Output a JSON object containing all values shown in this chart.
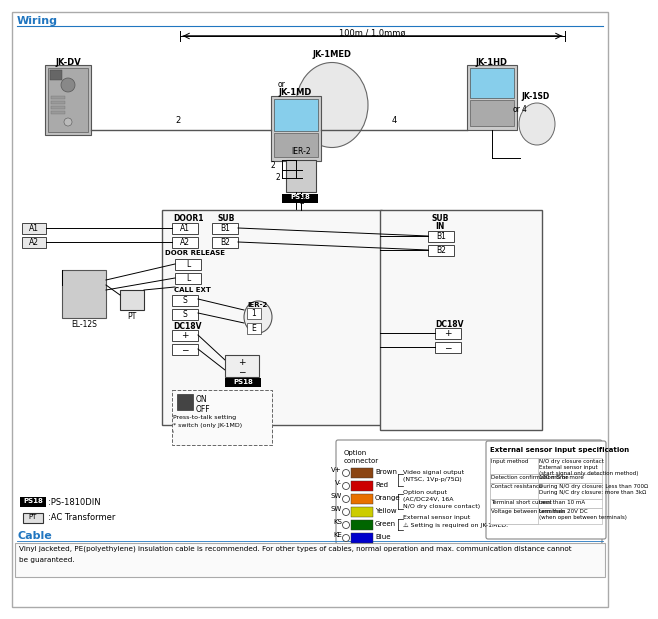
{
  "title": "Wiring",
  "title_color": "#2176C0",
  "cable_label": "Cable",
  "cable_label_color": "#2176C0",
  "cable_text1": "Vinyl jacketed, PE(polyethylene) insulation cable is recommended. For other types of cables, normal operation and max. communication distance cannot",
  "cable_text2": "be guaranteed.",
  "ext_title": "External sensor input specification",
  "ext_rows": [
    [
      "Input method",
      "N/O dry closure contact\nExternal sensor input\n(start signal only detection method)"
    ],
    [
      "Detection confirmation time",
      "100 mS or more"
    ],
    [
      "Contact resistance",
      "During N/O dry closure: Less than 700Ω\nDuring N/C dry closure: more than 3kΩ"
    ],
    [
      "Terminal short current",
      "Less than 10 mA"
    ],
    [
      "Voltage between terminals",
      "Less than 20V DC\n(when open between terminals)"
    ]
  ],
  "opt_labels": [
    "V+",
    "V-",
    "SW",
    "SW",
    "KS",
    "KE"
  ],
  "opt_colors": [
    "#8B4513",
    "#CC0000",
    "#E87000",
    "#CCCC00",
    "#006600",
    "#0000CC"
  ],
  "opt_names": [
    "Brown",
    "Red",
    "Orange",
    "Yellow",
    "Green",
    "Blue"
  ]
}
